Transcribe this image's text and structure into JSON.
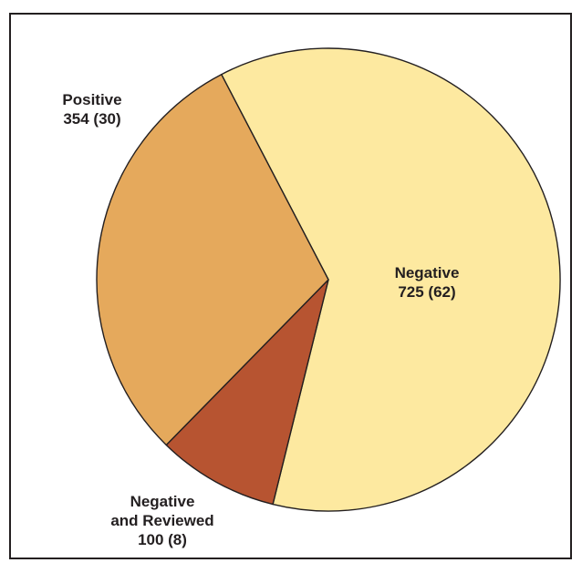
{
  "chart_data": {
    "type": "pie",
    "start_angle_deg": -27.5,
    "direction": "clockwise",
    "slices": [
      {
        "label_lines": [
          "Negative",
          "725 (62)"
        ],
        "value": 725,
        "percent": 62,
        "color": "#fde9a0"
      },
      {
        "label_lines": [
          "Negative",
          "and Reviewed",
          "100 (8)"
        ],
        "value": 100,
        "percent": 8,
        "color": "#b75431"
      },
      {
        "label_lines": [
          "Positive",
          "354 (30)"
        ],
        "value": 354,
        "percent": 30,
        "color": "#e5a95c"
      }
    ],
    "stroke_color": "#231f20"
  }
}
